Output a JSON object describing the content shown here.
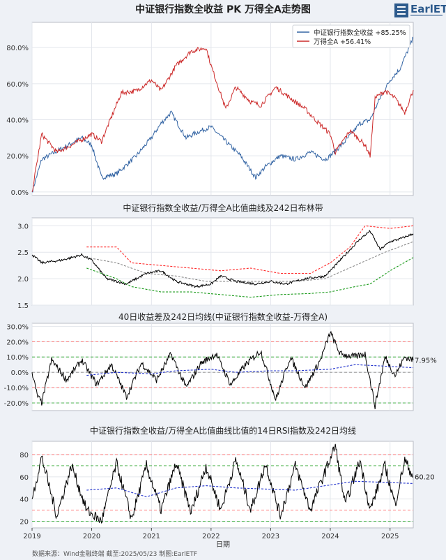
{
  "footer": {
    "source": "数据来源：Wind金融终端 截至:2025/05/23 制图:EarlETF",
    "xlabel": "日期",
    "years": [
      "2019",
      "2020",
      "2021",
      "2022",
      "2023",
      "2024",
      "2025"
    ]
  },
  "logo": {
    "text": "EarlETF",
    "icon": "logo-icon"
  },
  "colors": {
    "bank": "#3465a4",
    "wind": "#cc2a2a",
    "band_upper": "#ff2a2a",
    "band_lower": "#1a9a1a",
    "mid": "#888888",
    "ma": "#2233cc"
  },
  "chart_data": [
    {
      "type": "line",
      "title": "中证银行指数全收益 PK 万得全A走势图",
      "x_range": [
        "2019-01-01",
        "2025-05-23"
      ],
      "ylim": [
        -0.02,
        0.94
      ],
      "yticks": [
        0.0,
        0.2,
        0.4,
        0.6,
        0.8
      ],
      "ytick_labels": [
        "0.0%",
        "20.0%",
        "40.0%",
        "60.0%",
        "80.0%"
      ],
      "legend_position": "top-right",
      "legend": [
        "中证银行指数全收益  +85.25%",
        "万得全A  +56.41%"
      ],
      "series": [
        {
          "name": "中证银行指数全收益",
          "color": "#3465a4",
          "end_return": 0.8525,
          "points": [
            [
              "2019-01",
              0.0
            ],
            [
              "2019-03",
              0.18
            ],
            [
              "2019-07",
              0.24
            ],
            [
              "2019-11",
              0.3
            ],
            [
              "2020-01",
              0.26
            ],
            [
              "2020-03",
              0.08
            ],
            [
              "2020-06",
              0.1
            ],
            [
              "2020-10",
              0.2
            ],
            [
              "2021-01",
              0.3
            ],
            [
              "2021-03",
              0.38
            ],
            [
              "2021-05",
              0.44
            ],
            [
              "2021-08",
              0.3
            ],
            [
              "2021-11",
              0.34
            ],
            [
              "2022-01",
              0.36
            ],
            [
              "2022-04",
              0.28
            ],
            [
              "2022-07",
              0.2
            ],
            [
              "2022-10",
              0.08
            ],
            [
              "2022-12",
              0.14
            ],
            [
              "2023-03",
              0.2
            ],
            [
              "2023-06",
              0.18
            ],
            [
              "2023-09",
              0.22
            ],
            [
              "2023-12",
              0.18
            ],
            [
              "2024-01",
              0.2
            ],
            [
              "2024-04",
              0.28
            ],
            [
              "2024-07",
              0.38
            ],
            [
              "2024-09",
              0.4
            ],
            [
              "2024-11",
              0.52
            ],
            [
              "2025-01",
              0.62
            ],
            [
              "2025-03",
              0.68
            ],
            [
              "2025-05-23",
              0.8525
            ]
          ]
        },
        {
          "name": "万得全A",
          "color": "#cc2a2a",
          "end_return": 0.5641,
          "points": [
            [
              "2019-01",
              0.0
            ],
            [
              "2019-03",
              0.32
            ],
            [
              "2019-06",
              0.22
            ],
            [
              "2019-09",
              0.26
            ],
            [
              "2020-01",
              0.32
            ],
            [
              "2020-03",
              0.28
            ],
            [
              "2020-07",
              0.55
            ],
            [
              "2020-10",
              0.56
            ],
            [
              "2021-01",
              0.62
            ],
            [
              "2021-03",
              0.56
            ],
            [
              "2021-06",
              0.7
            ],
            [
              "2021-09",
              0.78
            ],
            [
              "2021-12",
              0.8
            ],
            [
              "2022-01",
              0.7
            ],
            [
              "2022-04",
              0.46
            ],
            [
              "2022-06",
              0.58
            ],
            [
              "2022-09",
              0.5
            ],
            [
              "2022-11",
              0.48
            ],
            [
              "2023-02",
              0.58
            ],
            [
              "2023-05",
              0.52
            ],
            [
              "2023-08",
              0.46
            ],
            [
              "2023-10",
              0.4
            ],
            [
              "2024-01",
              0.32
            ],
            [
              "2024-02",
              0.22
            ],
            [
              "2024-05",
              0.34
            ],
            [
              "2024-08",
              0.26
            ],
            [
              "2024-09",
              0.2
            ],
            [
              "2024-10",
              0.52
            ],
            [
              "2024-12",
              0.56
            ],
            [
              "2025-02",
              0.52
            ],
            [
              "2025-04",
              0.44
            ],
            [
              "2025-05-23",
              0.5641
            ]
          ]
        }
      ]
    },
    {
      "type": "line",
      "title": "中证银行指数全收益/万得全A比值曲线及242日布林带",
      "ylim": [
        1.5,
        3.15
      ],
      "yticks": [
        1.5,
        2.0,
        2.5,
        3.0
      ],
      "ytick_labels": [
        "1.5",
        "2.0",
        "2.5",
        "3.0"
      ],
      "series": [
        {
          "name": "ratio",
          "color": "#000000",
          "points": [
            [
              "2019-01",
              2.45
            ],
            [
              "2019-03",
              2.3
            ],
            [
              "2019-07",
              2.35
            ],
            [
              "2019-11",
              2.45
            ],
            [
              "2020-01",
              2.35
            ],
            [
              "2020-04",
              2.0
            ],
            [
              "2020-08",
              1.9
            ],
            [
              "2020-12",
              2.1
            ],
            [
              "2021-03",
              2.15
            ],
            [
              "2021-06",
              1.95
            ],
            [
              "2021-10",
              1.85
            ],
            [
              "2022-01",
              1.9
            ],
            [
              "2022-03",
              2.05
            ],
            [
              "2022-06",
              1.95
            ],
            [
              "2022-10",
              1.9
            ],
            [
              "2023-01",
              1.95
            ],
            [
              "2023-04",
              1.9
            ],
            [
              "2023-08",
              2.0
            ],
            [
              "2023-12",
              2.05
            ],
            [
              "2024-02",
              2.25
            ],
            [
              "2024-04",
              2.45
            ],
            [
              "2024-07",
              2.75
            ],
            [
              "2024-09",
              2.9
            ],
            [
              "2024-11",
              2.55
            ],
            [
              "2025-01",
              2.7
            ],
            [
              "2025-03",
              2.75
            ],
            [
              "2025-05-23",
              2.85
            ]
          ]
        },
        {
          "name": "upper",
          "color": "#ff2a2a",
          "dash": true,
          "points": [
            [
              "2019-12",
              2.6
            ],
            [
              "2020-06",
              2.6
            ],
            [
              "2020-09",
              2.3
            ],
            [
              "2021-03",
              2.25
            ],
            [
              "2021-09",
              2.2
            ],
            [
              "2022-03",
              2.15
            ],
            [
              "2022-09",
              2.2
            ],
            [
              "2023-03",
              2.1
            ],
            [
              "2023-09",
              2.1
            ],
            [
              "2024-01",
              2.3
            ],
            [
              "2024-05",
              2.6
            ],
            [
              "2024-08",
              3.0
            ],
            [
              "2025-01",
              2.95
            ],
            [
              "2025-05-23",
              3.0
            ]
          ]
        },
        {
          "name": "middle",
          "color": "#888888",
          "dash": true,
          "points": [
            [
              "2019-12",
              2.4
            ],
            [
              "2020-06",
              2.3
            ],
            [
              "2020-12",
              2.1
            ],
            [
              "2021-06",
              2.05
            ],
            [
              "2021-12",
              1.95
            ],
            [
              "2022-06",
              1.95
            ],
            [
              "2022-12",
              1.95
            ],
            [
              "2023-06",
              1.95
            ],
            [
              "2023-12",
              2.0
            ],
            [
              "2024-06",
              2.25
            ],
            [
              "2024-12",
              2.5
            ],
            [
              "2025-05-23",
              2.7
            ]
          ]
        },
        {
          "name": "lower",
          "color": "#1a9a1a",
          "dash": true,
          "points": [
            [
              "2019-12",
              2.2
            ],
            [
              "2020-06",
              2.0
            ],
            [
              "2020-09",
              1.85
            ],
            [
              "2021-03",
              1.75
            ],
            [
              "2021-09",
              1.75
            ],
            [
              "2022-03",
              1.7
            ],
            [
              "2022-09",
              1.65
            ],
            [
              "2023-03",
              1.7
            ],
            [
              "2023-09",
              1.72
            ],
            [
              "2024-01",
              1.75
            ],
            [
              "2024-06",
              1.85
            ],
            [
              "2024-09",
              1.9
            ],
            [
              "2025-01",
              2.15
            ],
            [
              "2025-05-23",
              2.4
            ]
          ]
        }
      ]
    },
    {
      "type": "line",
      "title": "40日收益差及242日均线(中证银行指数全收益-万得全A)",
      "ylim": [
        -0.25,
        0.32
      ],
      "yticks": [
        -0.2,
        -0.1,
        0.0,
        0.1,
        0.2,
        0.3
      ],
      "ytick_labels": [
        "-20.0%",
        "-10.0%",
        "0.0%",
        "10.0%",
        "20.0%",
        "30.0%"
      ],
      "hlines": [
        {
          "y": 0.2,
          "color": "#ff6666"
        },
        {
          "y": 0.1,
          "color": "#33aa33"
        },
        {
          "y": 0.0,
          "color": "#888888"
        },
        {
          "y": -0.1,
          "color": "#ff6666"
        },
        {
          "y": -0.2,
          "color": "#33aa33"
        }
      ],
      "end_label": "7.95%",
      "series": [
        {
          "name": "diff40",
          "color": "#000000",
          "points": [
            [
              "2019-01",
              0.0
            ],
            [
              "2019-02",
              -0.15
            ],
            [
              "2019-03",
              -0.2
            ],
            [
              "2019-05",
              0.08
            ],
            [
              "2019-08",
              -0.05
            ],
            [
              "2019-11",
              0.08
            ],
            [
              "2020-02",
              -0.08
            ],
            [
              "2020-05",
              0.05
            ],
            [
              "2020-08",
              -0.16
            ],
            [
              "2020-11",
              0.06
            ],
            [
              "2021-02",
              -0.05
            ],
            [
              "2021-05",
              0.12
            ],
            [
              "2021-08",
              -0.1
            ],
            [
              "2021-11",
              0.06
            ],
            [
              "2022-02",
              0.12
            ],
            [
              "2022-05",
              -0.08
            ],
            [
              "2022-08",
              0.05
            ],
            [
              "2022-11",
              0.14
            ],
            [
              "2023-02",
              -0.18
            ],
            [
              "2023-05",
              0.1
            ],
            [
              "2023-08",
              -0.1
            ],
            [
              "2023-11",
              0.08
            ],
            [
              "2024-01",
              0.26
            ],
            [
              "2024-03",
              0.12
            ],
            [
              "2024-06",
              0.1
            ],
            [
              "2024-08",
              0.12
            ],
            [
              "2024-10",
              -0.22
            ],
            [
              "2024-12",
              0.1
            ],
            [
              "2025-02",
              -0.02
            ],
            [
              "2025-04",
              0.1
            ],
            [
              "2025-05-23",
              0.0795
            ]
          ]
        },
        {
          "name": "ma242",
          "color": "#2233cc",
          "dash": true,
          "points": [
            [
              "2019-12",
              -0.02
            ],
            [
              "2020-06",
              0.0
            ],
            [
              "2021-01",
              -0.01
            ],
            [
              "2021-06",
              0.01
            ],
            [
              "2022-01",
              0.02
            ],
            [
              "2022-06",
              0.0
            ],
            [
              "2023-01",
              0.01
            ],
            [
              "2023-06",
              0.01
            ],
            [
              "2024-01",
              0.02
            ],
            [
              "2024-06",
              0.05
            ],
            [
              "2024-12",
              0.04
            ],
            [
              "2025-05-23",
              0.03
            ]
          ]
        }
      ]
    },
    {
      "type": "line",
      "title": "中证银行指数全收益/万得全A比值曲线比值的14日RSI指数及242日均线",
      "ylim": [
        14,
        92
      ],
      "yticks": [
        20,
        40,
        60,
        80
      ],
      "ytick_labels": [
        "20",
        "40",
        "60",
        "80"
      ],
      "hlines": [
        {
          "y": 80,
          "color": "#ff6666"
        },
        {
          "y": 70,
          "color": "#33aa33"
        },
        {
          "y": 30,
          "color": "#ff6666"
        },
        {
          "y": 20,
          "color": "#33aa33"
        }
      ],
      "end_label": "60.20",
      "series": [
        {
          "name": "rsi14",
          "color": "#000000",
          "points": [
            [
              "2019-01",
              40
            ],
            [
              "2019-03",
              78
            ],
            [
              "2019-06",
              25
            ],
            [
              "2019-09",
              70
            ],
            [
              "2019-12",
              30
            ],
            [
              "2020-03",
              20
            ],
            [
              "2020-06",
              72
            ],
            [
              "2020-09",
              22
            ],
            [
              "2020-12",
              70
            ],
            [
              "2021-03",
              30
            ],
            [
              "2021-06",
              72
            ],
            [
              "2021-09",
              28
            ],
            [
              "2021-12",
              70
            ],
            [
              "2022-03",
              30
            ],
            [
              "2022-06",
              75
            ],
            [
              "2022-09",
              30
            ],
            [
              "2022-12",
              72
            ],
            [
              "2023-03",
              25
            ],
            [
              "2023-06",
              70
            ],
            [
              "2023-09",
              30
            ],
            [
              "2023-12",
              65
            ],
            [
              "2024-02",
              88
            ],
            [
              "2024-04",
              35
            ],
            [
              "2024-07",
              75
            ],
            [
              "2024-09",
              30
            ],
            [
              "2024-12",
              70
            ],
            [
              "2025-02",
              35
            ],
            [
              "2025-04",
              75
            ],
            [
              "2025-05-23",
              60.2
            ]
          ]
        },
        {
          "name": "ma242",
          "color": "#2233cc",
          "dash": true,
          "points": [
            [
              "2019-12",
              48
            ],
            [
              "2020-06",
              50
            ],
            [
              "2020-12",
              42
            ],
            [
              "2021-06",
              50
            ],
            [
              "2021-12",
              52
            ],
            [
              "2022-06",
              50
            ],
            [
              "2022-12",
              49
            ],
            [
              "2023-06",
              48
            ],
            [
              "2023-12",
              52
            ],
            [
              "2024-06",
              56
            ],
            [
              "2024-12",
              55
            ],
            [
              "2025-05-23",
              54
            ]
          ]
        }
      ]
    }
  ]
}
